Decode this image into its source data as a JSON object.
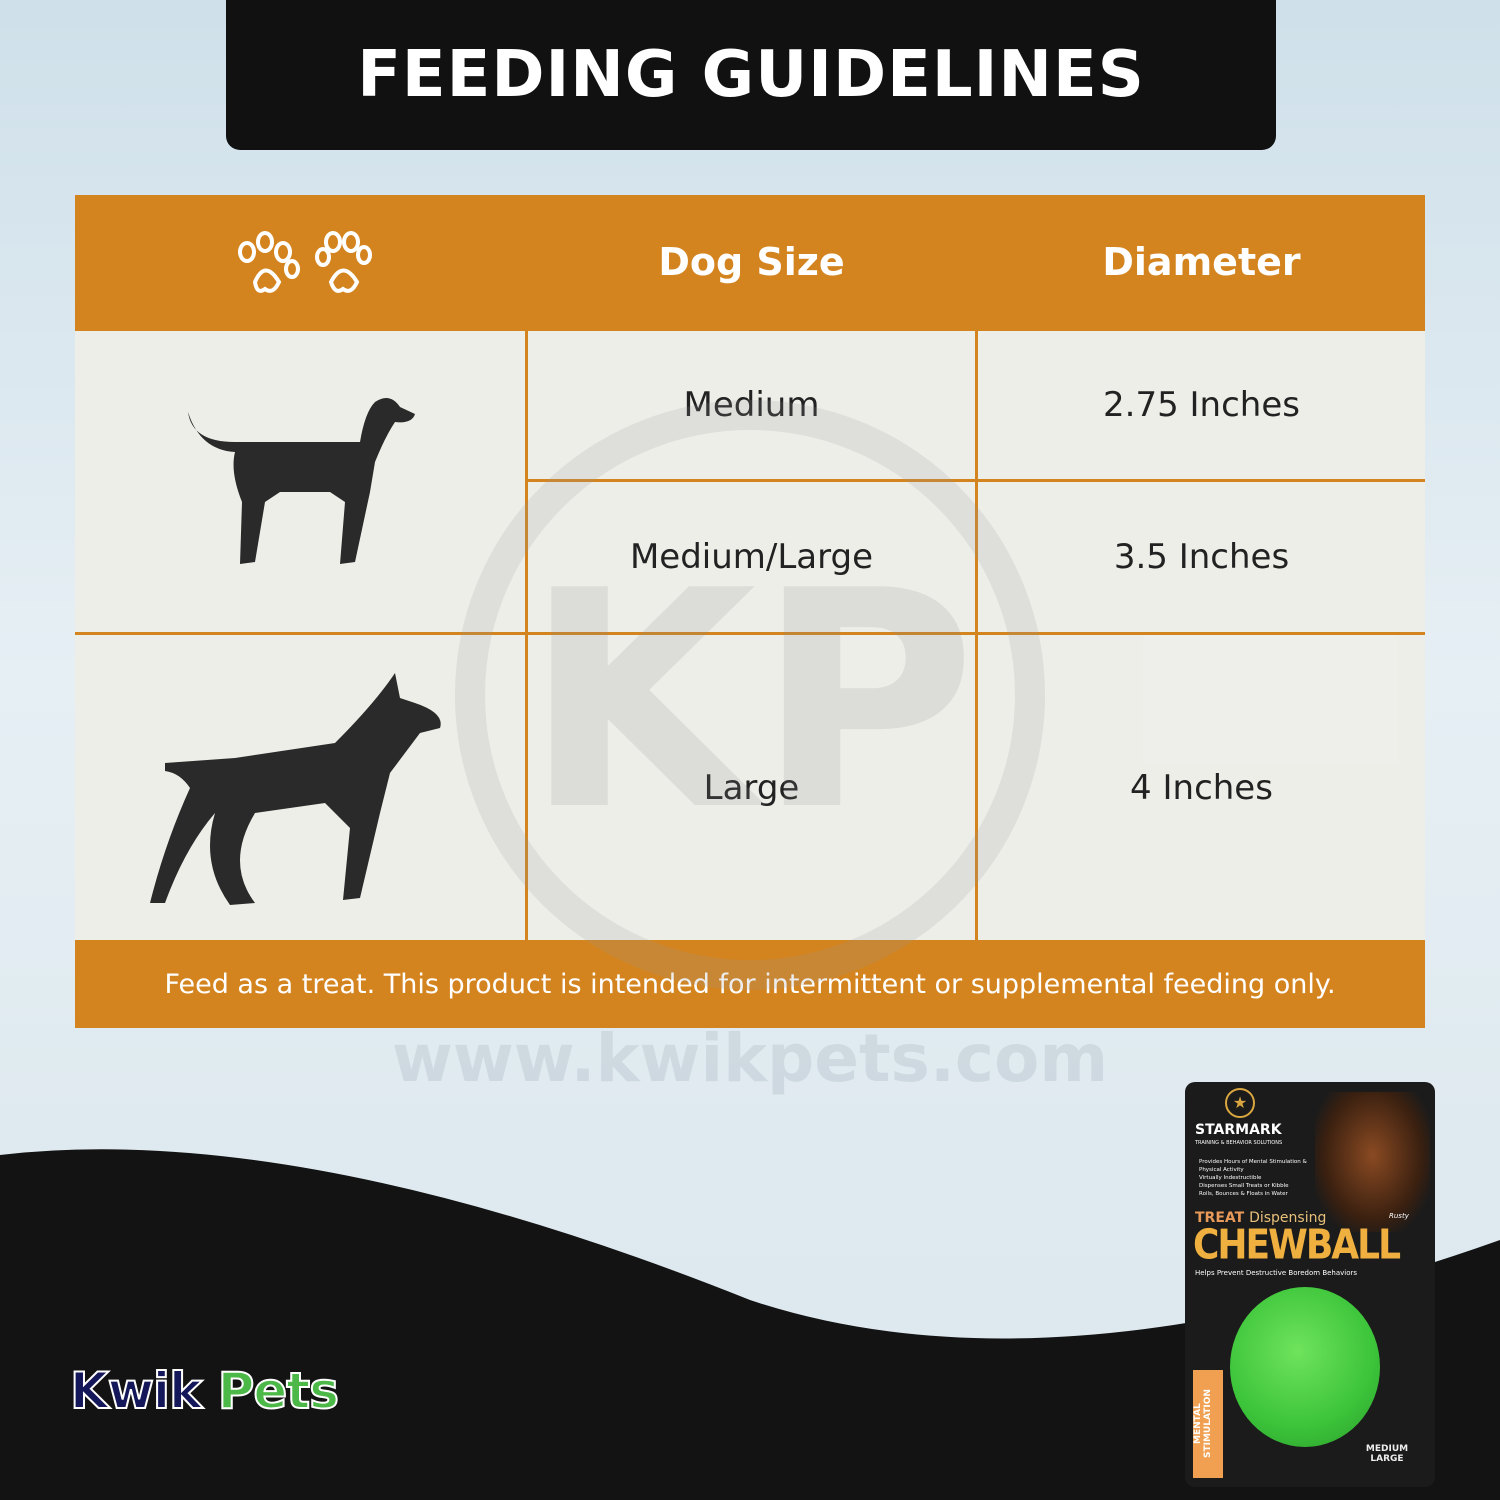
{
  "title": "FEEDING GUIDELINES",
  "table": {
    "headers": [
      "",
      "Dog Size",
      "Diameter"
    ],
    "rows": [
      {
        "size": "Medium",
        "diameter": "2.75 Inches"
      },
      {
        "size": "Medium/Large",
        "diameter": "3.5 Inches"
      },
      {
        "size": "Large",
        "diameter": "4 Inches"
      }
    ],
    "footer": "Feed as a treat. This product is intended for intermittent or supplemental feeding only."
  },
  "watermark": {
    "logo": "KP",
    "url": "www.kwikpets.com"
  },
  "brand_logo": {
    "part1": "Kwik",
    "part2": "Pets"
  },
  "package": {
    "brand": "STARMARK",
    "tagline": "TRAINING & BEHAVIOR SOLUTIONS",
    "bullets": [
      "Provides Hours of Mental Stimulation & Physical Activity",
      "Virtually Indestructible",
      "Dispenses Small Treats or Kibble",
      "Rolls, Bounces & Floats in Water"
    ],
    "line1a": "TREAT",
    "line1b": "Dispensing",
    "product": "CHEWBALL",
    "subtitle": "Helps Prevent Destructive Boredom Behaviors",
    "dog_name": "Rusty",
    "side_label": "MENTAL STIMULATION",
    "size": "MEDIUM LARGE"
  },
  "colors": {
    "orange": "#d4841f",
    "black": "#111111",
    "navy": "#14185a",
    "green": "#4cb848"
  }
}
